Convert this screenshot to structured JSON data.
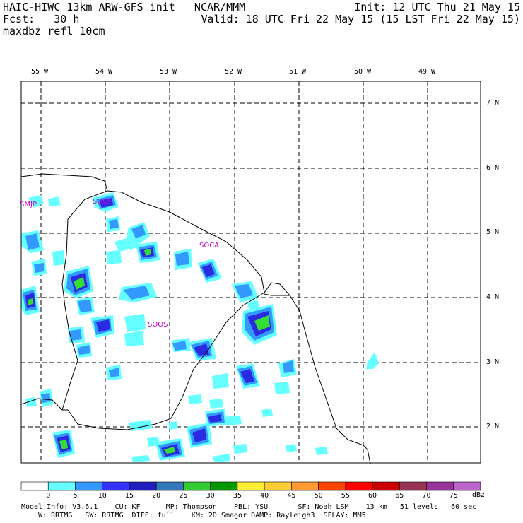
{
  "header": {
    "left_line1": "HAIC-HIWC 13km ARW-GFS init   NCAR/MMM",
    "left_line2": "Fcst:   30 h",
    "left_line3": "maxdbz_refl_10cm",
    "right_line1": "Init: 12 UTC Thu 21 May 15",
    "right_line2": "Valid: 18 UTC Fri 22 May 15 (15 LST Fri 22 May 15)"
  },
  "longitude_labels": [
    "55 W",
    "54 W",
    "53 W",
    "52 W",
    "51 W",
    "50 W",
    "49 W"
  ],
  "latitude_labels": [
    "7 N",
    "6 N",
    "5 N",
    "4 N",
    "3 N",
    "2 N"
  ],
  "stations": [
    "SMJP",
    "SOOP",
    "SOCA",
    "SOOS"
  ],
  "colorbar": {
    "ticks": [
      "0",
      "5",
      "10",
      "15",
      "20",
      "25",
      "30",
      "35",
      "40",
      "45",
      "50",
      "55",
      "60",
      "65",
      "70",
      "75"
    ],
    "unit": "dBz",
    "colors": [
      "#ffffff",
      "#66ffff",
      "#3399ff",
      "#3333ff",
      "#1f1fc0",
      "#3377bb",
      "#33cc33",
      "#009900",
      "#ffee33",
      "#ffcc33",
      "#ff9933",
      "#ff4400",
      "#ff0000",
      "#cc0000",
      "#993355",
      "#993399",
      "#bb66cc"
    ]
  },
  "footer": {
    "line1": "Model Info: V3.6.1    CU: KF      MP: Thompson    PBL: YSU       SF: Noah LSM    13 km   51 levels   60 sec",
    "line2": "   LW: RRTMG   SW: RRTMG  DIFF: full    KM: 2D Smagor DAMP: Rayleigh3  SFLAY: MM5"
  }
}
